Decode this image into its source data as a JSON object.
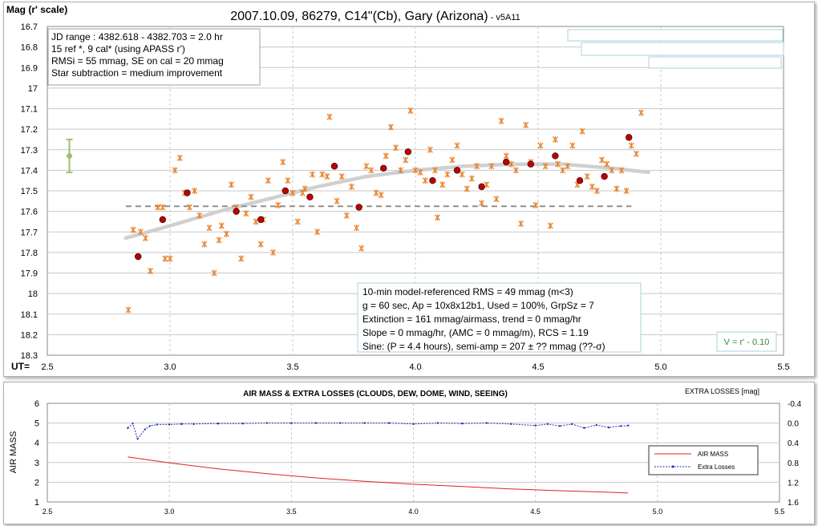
{
  "chart_data": [
    {
      "type": "scatter",
      "title": "2007.10.09, 86279, C14\"(Cb), Gary (Arizona)",
      "title_suffix": " - v5A11",
      "ylabel": "Mag (r' scale)",
      "xlabel": "UT=",
      "xlim": [
        2.5,
        5.5
      ],
      "ylim": [
        16.7,
        18.3
      ],
      "y_reversed": true,
      "grid": true,
      "x_ticks": [
        "2.5",
        "3.0",
        "3.5",
        "4.0",
        "4.5",
        "5.0",
        "5.5"
      ],
      "y_ticks": [
        "16.7",
        "16.8",
        "16.9",
        "17",
        "17.1",
        "17.2",
        "17.3",
        "17.4",
        "17.5",
        "17.6",
        "17.7",
        "17.8",
        "17.9",
        "18",
        "18.1",
        "18.2",
        "18.3"
      ],
      "info_box_top": [
        "JD range : 4382.618 - 4382.703 = 2.0 hr",
        " 15 ref *, 9 cal* (using APASS r')",
        "RMSi = 55 mmag, SE on cal = 20 mmag",
        "Star subtraction = medium improvement"
      ],
      "info_box_bottom": [
        "10-min model-referenced RMS = 49 mmag (m<3)",
        "g = 60 sec, Ap = 10x8x12b1, Used = 100%,  GrpSz = 7",
        "Extinction = 161 mmag/airmass, trend = 0 mmag/hr",
        "Slope = 0 mmag/hr, (AMC = 0 mmag/m), RCS = 1.19",
        "Sine: (P = 4.4 hours), semi-amp = 207 ± ?? mmag (??-σ)"
      ],
      "transform_note": "V = r' - 0.10",
      "colors": {
        "individual": "#e8822a",
        "group": "#c00000",
        "trend": "#d0d0d0",
        "mean": "#909090",
        "errorbar": "#9cbf6a",
        "transform": "#3a8a3a"
      },
      "error_bar": {
        "x": 2.59,
        "y": 17.33,
        "low": 17.25,
        "high": 17.41
      },
      "mean_line": {
        "x_start": 2.82,
        "x_end": 4.88,
        "y": 17.575
      },
      "trend_curve": {
        "x": [
          2.82,
          3.0,
          3.2,
          3.4,
          3.6,
          3.8,
          4.0,
          4.2,
          4.4,
          4.6,
          4.8,
          4.95
        ],
        "y": [
          17.73,
          17.67,
          17.6,
          17.54,
          17.48,
          17.43,
          17.4,
          17.38,
          17.37,
          17.37,
          17.39,
          17.41
        ]
      },
      "series": [
        {
          "name": "individual",
          "points": [
            [
              2.83,
              18.08
            ],
            [
              2.85,
              17.69
            ],
            [
              2.88,
              17.7
            ],
            [
              2.9,
              17.73
            ],
            [
              2.92,
              17.89
            ],
            [
              2.95,
              17.58
            ],
            [
              2.97,
              17.58
            ],
            [
              2.98,
              17.83
            ],
            [
              3.0,
              17.83
            ],
            [
              3.02,
              17.4
            ],
            [
              3.04,
              17.34
            ],
            [
              3.06,
              17.51
            ],
            [
              3.08,
              17.58
            ],
            [
              3.1,
              17.5
            ],
            [
              3.12,
              17.62
            ],
            [
              3.14,
              17.76
            ],
            [
              3.16,
              17.68
            ],
            [
              3.18,
              17.9
            ],
            [
              3.2,
              17.74
            ],
            [
              3.21,
              17.67
            ],
            [
              3.23,
              17.71
            ],
            [
              3.25,
              17.47
            ],
            [
              3.27,
              17.58
            ],
            [
              3.29,
              17.83
            ],
            [
              3.31,
              17.61
            ],
            [
              3.33,
              17.53
            ],
            [
              3.35,
              17.65
            ],
            [
              3.37,
              17.76
            ],
            [
              3.38,
              17.64
            ],
            [
              3.4,
              17.45
            ],
            [
              3.42,
              17.8
            ],
            [
              3.44,
              17.57
            ],
            [
              3.46,
              17.36
            ],
            [
              3.48,
              17.45
            ],
            [
              3.5,
              17.51
            ],
            [
              3.52,
              17.65
            ],
            [
              3.54,
              17.51
            ],
            [
              3.55,
              17.49
            ],
            [
              3.58,
              17.42
            ],
            [
              3.6,
              17.7
            ],
            [
              3.62,
              17.42
            ],
            [
              3.64,
              17.43
            ],
            [
              3.65,
              17.14
            ],
            [
              3.68,
              17.55
            ],
            [
              3.7,
              17.43
            ],
            [
              3.72,
              17.62
            ],
            [
              3.74,
              17.48
            ],
            [
              3.76,
              17.68
            ],
            [
              3.78,
              17.78
            ],
            [
              3.8,
              17.38
            ],
            [
              3.82,
              17.4
            ],
            [
              3.84,
              17.51
            ],
            [
              3.86,
              17.52
            ],
            [
              3.88,
              17.33
            ],
            [
              3.9,
              17.19
            ],
            [
              3.92,
              17.29
            ],
            [
              3.94,
              17.4
            ],
            [
              3.96,
              17.35
            ],
            [
              3.98,
              17.11
            ],
            [
              4.0,
              17.4
            ],
            [
              4.02,
              17.41
            ],
            [
              4.04,
              17.45
            ],
            [
              4.06,
              17.3
            ],
            [
              4.08,
              17.4
            ],
            [
              4.09,
              17.63
            ],
            [
              4.11,
              17.47
            ],
            [
              4.13,
              17.42
            ],
            [
              4.15,
              17.35
            ],
            [
              4.17,
              17.28
            ],
            [
              4.19,
              17.42
            ],
            [
              4.21,
              17.49
            ],
            [
              4.23,
              17.44
            ],
            [
              4.25,
              17.38
            ],
            [
              4.27,
              17.56
            ],
            [
              4.29,
              17.47
            ],
            [
              4.31,
              17.38
            ],
            [
              4.33,
              17.54
            ],
            [
              4.35,
              17.16
            ],
            [
              4.37,
              17.33
            ],
            [
              4.39,
              17.37
            ],
            [
              4.41,
              17.4
            ],
            [
              4.43,
              17.66
            ],
            [
              4.45,
              17.18
            ],
            [
              4.47,
              17.36
            ],
            [
              4.49,
              17.57
            ],
            [
              4.51,
              17.28
            ],
            [
              4.53,
              17.38
            ],
            [
              4.55,
              17.67
            ],
            [
              4.57,
              17.25
            ],
            [
              4.58,
              17.37
            ],
            [
              4.6,
              17.4
            ],
            [
              4.62,
              17.38
            ],
            [
              4.64,
              17.28
            ],
            [
              4.66,
              17.47
            ],
            [
              4.68,
              17.21
            ],
            [
              4.7,
              17.43
            ],
            [
              4.72,
              17.48
            ],
            [
              4.74,
              17.5
            ],
            [
              4.76,
              17.35
            ],
            [
              4.78,
              17.37
            ],
            [
              4.8,
              17.4
            ],
            [
              4.82,
              17.49
            ],
            [
              4.84,
              17.4
            ],
            [
              4.86,
              17.5
            ],
            [
              4.88,
              17.28
            ],
            [
              4.9,
              17.32
            ],
            [
              4.92,
              17.12
            ]
          ]
        },
        {
          "name": "group",
          "points": [
            [
              2.87,
              17.82
            ],
            [
              2.97,
              17.64
            ],
            [
              3.07,
              17.51
            ],
            [
              3.27,
              17.6
            ],
            [
              3.37,
              17.64
            ],
            [
              3.47,
              17.5
            ],
            [
              3.57,
              17.53
            ],
            [
              3.67,
              17.38
            ],
            [
              3.77,
              17.58
            ],
            [
              3.87,
              17.39
            ],
            [
              3.97,
              17.31
            ],
            [
              4.07,
              17.45
            ],
            [
              4.17,
              17.4
            ],
            [
              4.27,
              17.48
            ],
            [
              4.37,
              17.36
            ],
            [
              4.47,
              17.37
            ],
            [
              4.57,
              17.33
            ],
            [
              4.67,
              17.45
            ],
            [
              4.77,
              17.43
            ],
            [
              4.87,
              17.24
            ]
          ]
        }
      ]
    },
    {
      "type": "line",
      "title": "AIR MASS & EXTRA LOSSES (CLOUDS, DEW, DOME, WIND, SEEING)",
      "ylabel": "AIR MASS",
      "y2label": "EXTRA LOSSES [mag]",
      "xlim": [
        2.5,
        5.5
      ],
      "ylim": [
        1,
        6
      ],
      "y2lim": [
        -0.4,
        1.6
      ],
      "y2_reversed": true,
      "grid": true,
      "legend_position": "right",
      "x_ticks": [
        "2.5",
        "3.0",
        "3.5",
        "4.0",
        "4.5",
        "5.0",
        "5.5"
      ],
      "y_ticks": [
        "1",
        "2",
        "3",
        "4",
        "5",
        "6"
      ],
      "y2_ticks": [
        "-0.4",
        "0.0",
        "0.4",
        "0.8",
        "1.2",
        "1.6"
      ],
      "series": [
        {
          "name": "AIR MASS",
          "color": "#e02020",
          "x": [
            2.83,
            3.0,
            3.2,
            3.4,
            3.6,
            3.8,
            4.0,
            4.2,
            4.4,
            4.6,
            4.8,
            4.88
          ],
          "y": [
            3.28,
            2.98,
            2.68,
            2.43,
            2.22,
            2.05,
            1.9,
            1.78,
            1.66,
            1.57,
            1.49,
            1.45
          ]
        },
        {
          "name": "Extra Losses",
          "color": "#2030c0",
          "x": [
            2.83,
            2.85,
            2.87,
            2.9,
            2.92,
            2.95,
            3.0,
            3.05,
            3.1,
            3.2,
            3.3,
            3.4,
            3.5,
            3.6,
            3.7,
            3.8,
            3.9,
            4.0,
            4.1,
            4.2,
            4.3,
            4.4,
            4.5,
            4.55,
            4.6,
            4.65,
            4.7,
            4.75,
            4.8,
            4.85,
            4.88
          ],
          "y": [
            0.1,
            0.01,
            0.32,
            0.13,
            0.06,
            0.03,
            0.03,
            0.02,
            0.02,
            0.01,
            0.01,
            0.0,
            0.0,
            0.0,
            0.0,
            0.0,
            0.0,
            0.02,
            0.0,
            0.01,
            0.0,
            0.02,
            0.05,
            0.02,
            0.06,
            0.02,
            0.1,
            0.04,
            0.09,
            0.06,
            0.05
          ]
        }
      ]
    }
  ]
}
